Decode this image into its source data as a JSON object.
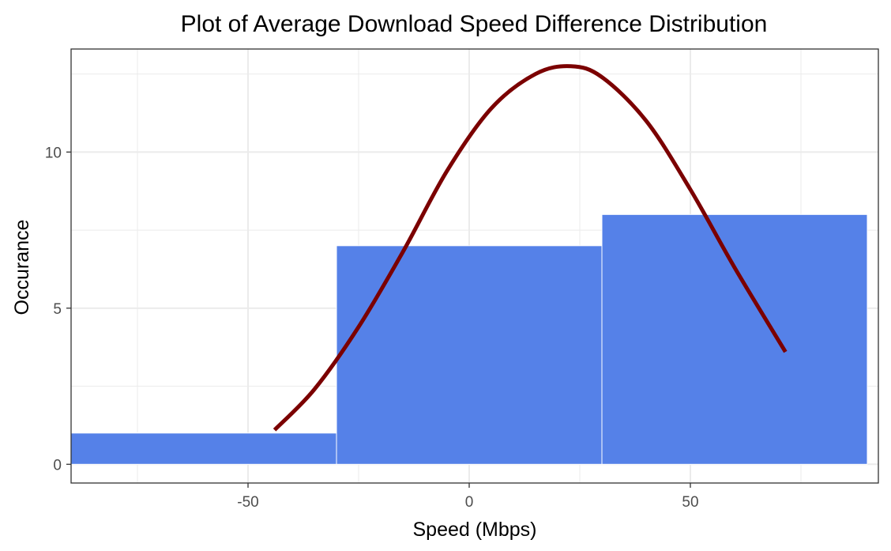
{
  "chart_data": {
    "type": "bar",
    "title": "Plot of Average Download Speed Difference Distribution",
    "xlabel": "Speed (Mbps)",
    "ylabel": "Occurance",
    "xlim": [
      -90,
      92.5
    ],
    "ylim": [
      -0.6,
      13.3
    ],
    "x_ticks": [
      -50,
      0,
      50
    ],
    "y_ticks": [
      0,
      5,
      10
    ],
    "grid": true,
    "bars": [
      {
        "x0": -90,
        "x1": -30,
        "value": 1
      },
      {
        "x0": -30,
        "x1": 30,
        "value": 7
      },
      {
        "x0": 30,
        "x1": 90,
        "value": 8
      }
    ],
    "curve": {
      "type": "normal-density-scaled",
      "x": [
        -44,
        -35,
        -25,
        -15,
        -5,
        5,
        15,
        23,
        30,
        40,
        50,
        60,
        71.5
      ],
      "y": [
        1.1,
        2.4,
        4.4,
        6.8,
        9.4,
        11.4,
        12.5,
        12.75,
        12.4,
        11.0,
        8.8,
        6.3,
        3.6
      ]
    },
    "colors": {
      "bar_fill": "#5581E8",
      "bar_border": "#FFFFFF",
      "curve": "#7B0000",
      "grid": "#EBEBEB",
      "panel_border": "#333333"
    }
  }
}
